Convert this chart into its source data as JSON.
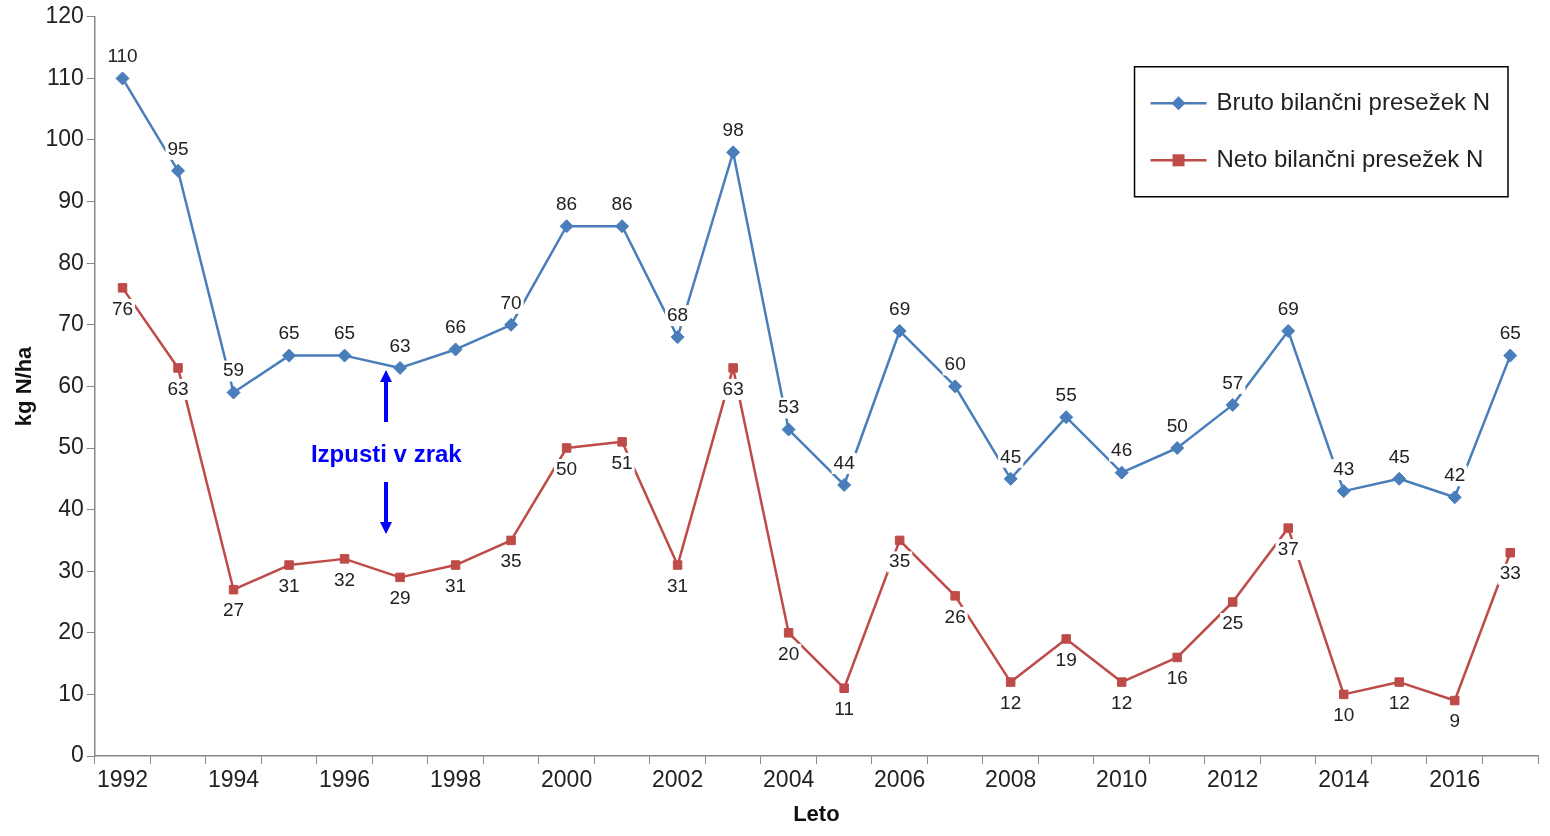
{
  "chart_data": {
    "type": "line",
    "xlabel": "Leto",
    "ylabel": "kg N/ha",
    "categories": [
      "1992",
      null,
      "1994",
      null,
      "1996",
      null,
      "1998",
      null,
      "2000",
      null,
      "2002",
      null,
      "2004",
      null,
      "2006",
      null,
      "2008",
      null,
      "2010",
      null,
      "2012",
      null,
      "2014",
      null,
      "2016",
      null
    ],
    "series": [
      {
        "name": "Bruto bilančni presežek N",
        "color": "#4a7ebb",
        "marker": "diamond",
        "values": [
          110,
          95,
          59,
          65,
          65,
          63,
          66,
          70,
          86,
          86,
          68,
          98,
          53,
          44,
          69,
          60,
          45,
          55,
          46,
          50,
          57,
          69,
          43,
          45,
          42,
          65
        ]
      },
      {
        "name": "Neto bilančni presežek N",
        "color": "#be4b48",
        "marker": "square",
        "values": [
          76,
          63,
          27,
          31,
          32,
          29,
          31,
          35,
          50,
          51,
          31,
          63,
          20,
          11,
          35,
          26,
          12,
          19,
          12,
          16,
          25,
          37,
          10,
          12,
          9,
          33
        ]
      }
    ],
    "ylim": [
      0,
      120
    ],
    "yticks": [
      0,
      10,
      20,
      30,
      40,
      50,
      60,
      70,
      80,
      90,
      100,
      110,
      120
    ],
    "grid": false,
    "legend": "top right",
    "data_labels": true,
    "line_style": "solid",
    "annotations": [
      "Izpusti v zrak"
    ]
  }
}
